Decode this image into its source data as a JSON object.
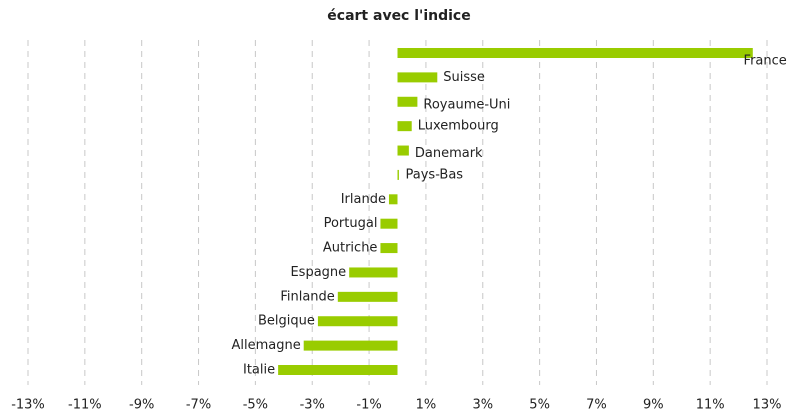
{
  "chart_data": {
    "type": "bar",
    "orientation": "horizontal",
    "title": "écart avec l'indice",
    "categories": [
      "France",
      "Suisse",
      "Royaume-Uni",
      "Luxembourg",
      "Danemark",
      "Pays-Bas",
      "Irlande",
      "Portugal",
      "Autriche",
      "Espagne",
      "Finlande",
      "Belgique",
      "Allemagne",
      "Italie"
    ],
    "values": [
      12.5,
      1.4,
      0.7,
      0.5,
      0.4,
      0.05,
      -0.3,
      -0.6,
      -0.6,
      -1.7,
      -2.1,
      -2.8,
      -3.3,
      -4.2
    ],
    "color": "#99cc00",
    "xlim": [
      -13,
      13
    ],
    "xticks": [
      {
        "value": -13,
        "label": "-13%"
      },
      {
        "value": -11,
        "label": "-11%"
      },
      {
        "value": -9,
        "label": "-9%"
      },
      {
        "value": -7,
        "label": "-7%"
      },
      {
        "value": -5,
        "label": "-5%"
      },
      {
        "value": -3,
        "label": "-3%"
      },
      {
        "value": -1,
        "label": "-1%"
      },
      {
        "value": 1,
        "label": "1%"
      },
      {
        "value": 3,
        "label": "3%"
      },
      {
        "value": 5,
        "label": "5%"
      },
      {
        "value": 7,
        "label": "7%"
      },
      {
        "value": 9,
        "label": "9%"
      },
      {
        "value": 11,
        "label": "11%"
      },
      {
        "value": 13,
        "label": "13%"
      }
    ],
    "grid": true
  }
}
